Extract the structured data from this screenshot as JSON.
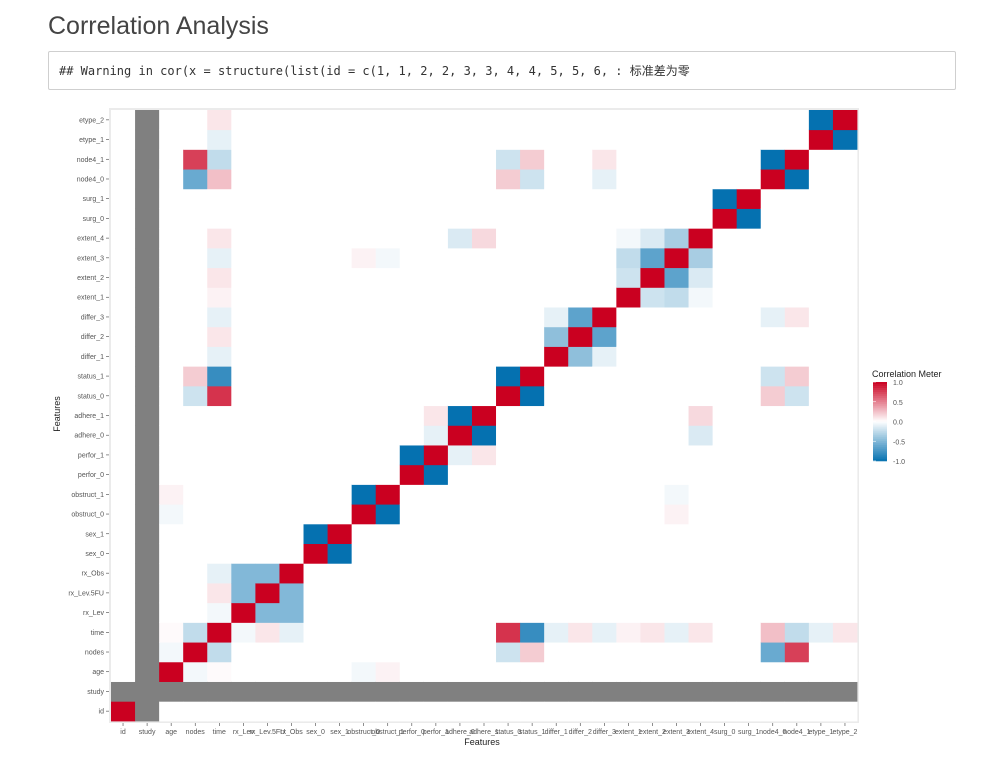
{
  "page": {
    "title": "Correlation Analysis",
    "warning": "## Warning in cor(x = structure(list(id = c(1, 1, 2, 2, 3, 3, 4, 4, 5, 5, 6, : 标准差为零"
  },
  "colors": {
    "positive": "#CA0020",
    "negative": "#0571B0",
    "neutral": "#FFFFFF",
    "na": "#808080",
    "panel": "#EBEBEB"
  },
  "chart_data": {
    "type": "heatmap",
    "xlabel": "Features",
    "ylabel": "Features",
    "legend": {
      "title": "Correlation Meter",
      "ticks": [
        1.0,
        0.5,
        0.0,
        -0.5,
        -1.0
      ],
      "tick_labels": [
        "1.0",
        "0.5",
        "0.0",
        "-0.5",
        "-1.0"
      ],
      "placement": "right"
    },
    "features": [
      "id",
      "study",
      "age",
      "nodes",
      "time",
      "rx_Lev",
      "rx_Lev.5FU",
      "rx_Obs",
      "sex_0",
      "sex_1",
      "obstruct_0",
      "obstruct_1",
      "perfor_0",
      "perfor_1",
      "adhere_0",
      "adhere_1",
      "status_0",
      "status_1",
      "differ_1",
      "differ_2",
      "differ_3",
      "extent_1",
      "extent_2",
      "extent_3",
      "extent_4",
      "surg_0",
      "surg_1",
      "node4_0",
      "node4_1",
      "etype_1",
      "etype_2"
    ],
    "zero_variance": [
      "study"
    ],
    "pairs": [
      [
        "age",
        "nodes",
        -0.05
      ],
      [
        "age",
        "time",
        0.02
      ],
      [
        "nodes",
        "time",
        -0.25
      ],
      [
        "nodes",
        "node4_0",
        -0.6
      ],
      [
        "nodes",
        "node4_1",
        0.75
      ],
      [
        "time",
        "node4_0",
        0.25
      ],
      [
        "time",
        "node4_1",
        -0.25
      ],
      [
        "time",
        "status_0",
        0.8
      ],
      [
        "time",
        "status_1",
        -0.8
      ],
      [
        "time",
        "etype_1",
        -0.1
      ],
      [
        "time",
        "etype_2",
        0.1
      ],
      [
        "time",
        "differ_1",
        -0.1
      ],
      [
        "time",
        "differ_2",
        0.1
      ],
      [
        "time",
        "differ_3",
        -0.1
      ],
      [
        "time",
        "extent_1",
        0.05
      ],
      [
        "time",
        "extent_2",
        0.1
      ],
      [
        "time",
        "extent_3",
        -0.1
      ],
      [
        "time",
        "extent_4",
        0.1
      ],
      [
        "time",
        "rx_Lev",
        -0.05
      ],
      [
        "time",
        "rx_Lev.5FU",
        0.1
      ],
      [
        "time",
        "rx_Obs",
        -0.1
      ],
      [
        "rx_Lev",
        "rx_Lev.5FU",
        -0.5
      ],
      [
        "rx_Lev",
        "rx_Obs",
        -0.5
      ],
      [
        "rx_Lev.5FU",
        "rx_Obs",
        -0.5
      ],
      [
        "sex_0",
        "sex_1",
        -1.0
      ],
      [
        "obstruct_0",
        "obstruct_1",
        -1.0
      ],
      [
        "perfor_0",
        "perfor_1",
        -1.0
      ],
      [
        "adhere_0",
        "adhere_1",
        -1.0
      ],
      [
        "status_0",
        "status_1",
        -1.0
      ],
      [
        "differ_1",
        "differ_2",
        -0.45
      ],
      [
        "differ_1",
        "differ_3",
        -0.1
      ],
      [
        "differ_2",
        "differ_3",
        -0.65
      ],
      [
        "extent_1",
        "extent_2",
        -0.2
      ],
      [
        "extent_1",
        "extent_3",
        -0.25
      ],
      [
        "extent_1",
        "extent_4",
        -0.05
      ],
      [
        "extent_2",
        "extent_3",
        -0.65
      ],
      [
        "extent_2",
        "extent_4",
        -0.15
      ],
      [
        "extent_3",
        "extent_4",
        -0.35
      ],
      [
        "surg_0",
        "surg_1",
        -1.0
      ],
      [
        "node4_0",
        "node4_1",
        -1.0
      ],
      [
        "etype_1",
        "etype_2",
        -1.0
      ],
      [
        "status_0",
        "node4_0",
        0.2
      ],
      [
        "status_0",
        "node4_1",
        -0.2
      ],
      [
        "status_1",
        "node4_0",
        -0.2
      ],
      [
        "status_1",
        "node4_1",
        0.2
      ],
      [
        "nodes",
        "status_0",
        -0.2
      ],
      [
        "nodes",
        "status_1",
        0.2
      ],
      [
        "adhere_1",
        "extent_4",
        0.15
      ],
      [
        "adhere_0",
        "extent_4",
        -0.15
      ],
      [
        "obstruct_0",
        "extent_3",
        0.05
      ],
      [
        "obstruct_1",
        "extent_3",
        -0.05
      ],
      [
        "perfor_1",
        "adhere_0",
        -0.1
      ],
      [
        "perfor_1",
        "adhere_1",
        0.1
      ],
      [
        "differ_3",
        "node4_0",
        -0.1
      ],
      [
        "differ_3",
        "node4_1",
        0.1
      ],
      [
        "age",
        "obstruct_0",
        -0.05
      ],
      [
        "age",
        "obstruct_1",
        0.05
      ]
    ]
  }
}
